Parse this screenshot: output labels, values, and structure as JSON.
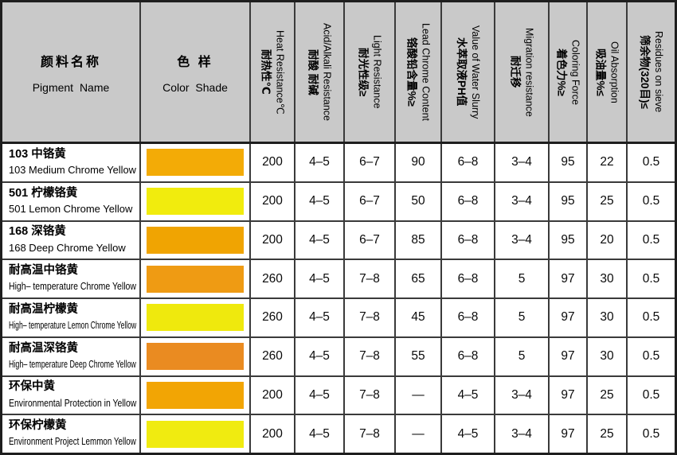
{
  "table": {
    "columns": [
      {
        "zh": "颜料名称",
        "en": "Pigment Name"
      },
      {
        "zh": "色 样",
        "en": "Color Shade"
      },
      {
        "zh": "耐热性℃",
        "en": "Heat Resistance℃"
      },
      {
        "zh": "耐酸 耐碱",
        "en": "Acid/Alkali Resistance"
      },
      {
        "zh": "耐光性级≥",
        "en": "Light Resistance"
      },
      {
        "zh": "铬酸铅含量%≥",
        "en": "Lead Chrome Content"
      },
      {
        "zh": "水萃取液PH值",
        "en": "Value of Water Slurry"
      },
      {
        "zh": "耐迁移",
        "en": "Migration resistance"
      },
      {
        "zh": "着色力%≥",
        "en": "Coloring Force"
      },
      {
        "zh": "吸油量%≤",
        "en": "Oil Absorption"
      },
      {
        "zh": "筛余物(320目)≤",
        "en": "Residues on sieve"
      }
    ],
    "rows": [
      {
        "name_zh": "103 中铬黄",
        "name_en": "103 Medium Chrome Yellow",
        "swatch_color": "#F3AB06",
        "values": [
          "200",
          "4–5",
          "6–7",
          "90",
          "6–8",
          "3–4",
          "95",
          "22",
          "0.5"
        ]
      },
      {
        "name_zh": "501 柠檬铬黄",
        "name_en": "501 Lemon Chrome Yellow",
        "swatch_color": "#F1EC0D",
        "values": [
          "200",
          "4–5",
          "6–7",
          "50",
          "6–8",
          "3–4",
          "95",
          "25",
          "0.5"
        ]
      },
      {
        "name_zh": "168 深铬黄",
        "name_en": "168 Deep Chrome Yellow",
        "swatch_color": "#F0A402",
        "values": [
          "200",
          "4–5",
          "6–7",
          "85",
          "6–8",
          "3–4",
          "95",
          "20",
          "0.5"
        ]
      },
      {
        "name_zh": "耐高温中铬黄",
        "name_en": "High– temperature Chrome Yellow",
        "swatch_color": "#EF9B13",
        "values": [
          "260",
          "4–5",
          "7–8",
          "65",
          "6–8",
          "5",
          "97",
          "30",
          "0.5"
        ]
      },
      {
        "name_zh": "耐高温柠檬黄",
        "name_en": "High– temperature Lemon Chrome Yellow",
        "swatch_color": "#EFE90D",
        "values": [
          "260",
          "4–5",
          "7–8",
          "45",
          "6–8",
          "5",
          "97",
          "30",
          "0.5"
        ]
      },
      {
        "name_zh": "耐高温深铬黄",
        "name_en": "High– temperature Deep Chrome Yellow",
        "swatch_color": "#EA8B21",
        "values": [
          "260",
          "4–5",
          "7–8",
          "55",
          "6–8",
          "5",
          "97",
          "30",
          "0.5"
        ]
      },
      {
        "name_zh": "环保中黄",
        "name_en": "Environmental Protection in Yellow",
        "swatch_color": "#F2A504",
        "values": [
          "200",
          "4–5",
          "7–8",
          "—",
          "4–5",
          "3–4",
          "97",
          "25",
          "0.5"
        ]
      },
      {
        "name_zh": "环保柠檬黄",
        "name_en": "Environment Project Lemmon Yellow",
        "swatch_color": "#F0EB10",
        "values": [
          "200",
          "4–5",
          "7–8",
          "—",
          "4–5",
          "3–4",
          "97",
          "25",
          "0.5"
        ]
      }
    ]
  }
}
